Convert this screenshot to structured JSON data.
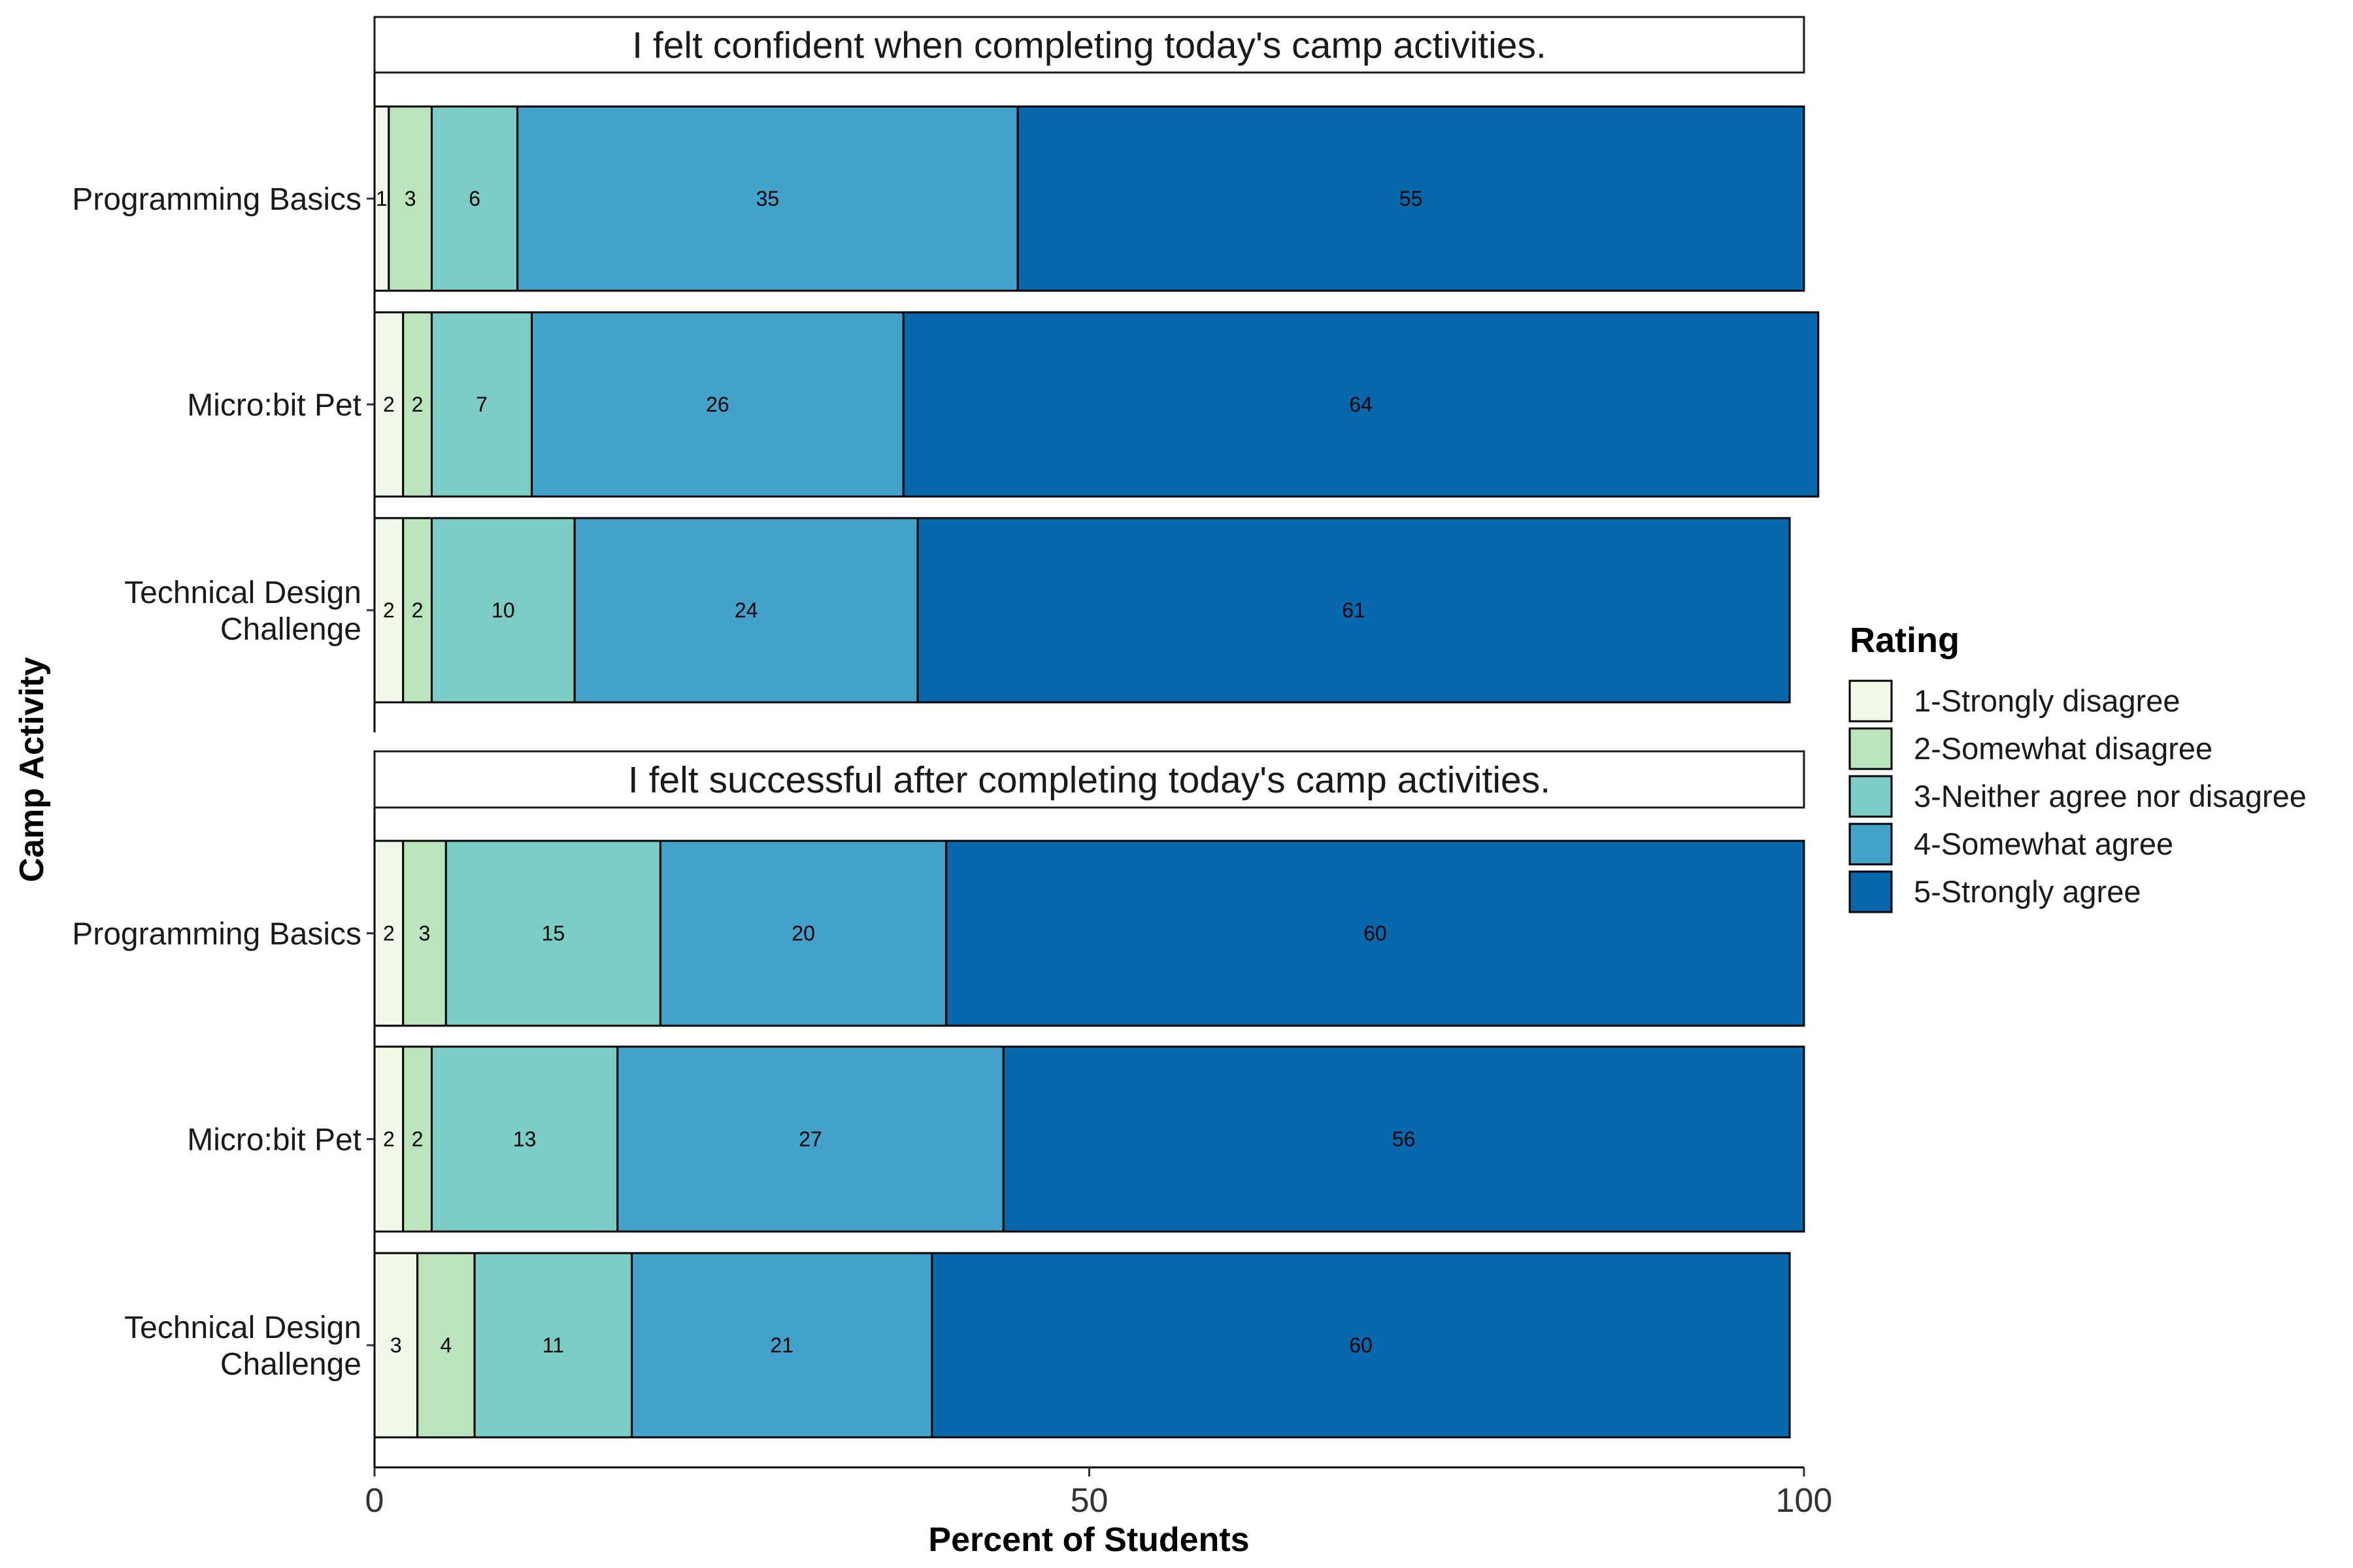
{
  "chart_data": {
    "type": "bar",
    "orientation": "horizontal",
    "stacked": true,
    "xlabel": "Percent of Students",
    "ylabel": "Camp Activity",
    "xlim": [
      0,
      100
    ],
    "xticks": [
      "0",
      "50",
      "100"
    ],
    "grid": false,
    "legend": {
      "title": "Rating",
      "position": "right",
      "entries": [
        "1-Strongly disagree",
        "2-Somewhat disagree",
        "3-Neither agree nor disagree",
        "4-Somewhat agree",
        "5-Strongly agree"
      ]
    },
    "colors": [
      "#f0f9e8",
      "#bae4bc",
      "#7bccc4",
      "#43a2ca",
      "#0868ac"
    ],
    "categories": [
      "Programming Basics",
      "Micro:bit Pet",
      "Technical Design Challenge"
    ],
    "category_display": [
      [
        "Programming Basics"
      ],
      [
        "Micro:bit Pet"
      ],
      [
        "Technical Design",
        "Challenge"
      ]
    ],
    "panels": [
      {
        "title": "I felt confident when completing today's camp activities.",
        "values": [
          [
            1,
            3,
            6,
            35,
            55
          ],
          [
            2,
            2,
            7,
            26,
            64
          ],
          [
            2,
            2,
            10,
            24,
            61
          ]
        ],
        "labels": [
          [
            "1",
            "3",
            "6",
            "35",
            "55"
          ],
          [
            "2",
            "2",
            "7",
            "26",
            "64"
          ],
          [
            "2",
            "2",
            "10",
            "24",
            "61"
          ]
        ]
      },
      {
        "title": "I felt successful after completing today's camp activities.",
        "values": [
          [
            2,
            3,
            15,
            20,
            60
          ],
          [
            2,
            2,
            13,
            27,
            56
          ],
          [
            3,
            4,
            11,
            21,
            60
          ]
        ],
        "labels": [
          [
            "2",
            "3",
            "15",
            "20",
            "60"
          ],
          [
            "2",
            "2",
            "13",
            "27",
            "56"
          ],
          [
            "3",
            "4",
            "11",
            "21",
            "60"
          ]
        ]
      }
    ]
  }
}
